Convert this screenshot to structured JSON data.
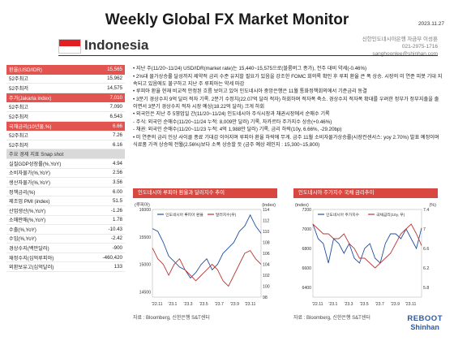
{
  "header": {
    "title": "Weekly Global FX Market Monitor",
    "date": "2023.11.27"
  },
  "country": {
    "name": "Indonesia",
    "flag_colors": [
      "#e01e24",
      "#ffffff"
    ]
  },
  "contact": {
    "line1": "신한인도네시아은행 자금부 이성훈",
    "line2": "021-2975-1716",
    "line3": "sanghoonlee@shinhan.com"
  },
  "table": [
    {
      "label": "환율(USD/IDR)",
      "value": "15,565",
      "style": "hdr"
    },
    {
      "label": "52주최고",
      "value": "15,962",
      "style": ""
    },
    {
      "label": "52주최저",
      "value": "14,575",
      "style": ""
    },
    {
      "label": "주가(Jakarta index)",
      "value": "7,010",
      "style": "hdr"
    },
    {
      "label": "52주최고",
      "value": "7,090",
      "style": ""
    },
    {
      "label": "52주최저",
      "value": "6,543",
      "style": ""
    },
    {
      "label": "국채금리(10년물,%)",
      "value": "6.66",
      "style": "hdr"
    },
    {
      "label": "52주최고",
      "value": "7.26",
      "style": ""
    },
    {
      "label": "52주최저",
      "value": "6.16",
      "style": ""
    },
    {
      "label": "주요 경제 지표 Snap shot",
      "value": "",
      "style": "snap"
    },
    {
      "label": "실질GDP성장률(%,YoY)",
      "value": "4.94",
      "style": ""
    },
    {
      "label": "소비자물가(%,YoY)",
      "value": "2.56",
      "style": ""
    },
    {
      "label": "생산자물가(%,YoY)",
      "value": "3.56",
      "style": ""
    },
    {
      "label": "정책금리(%)",
      "value": "6.00",
      "style": ""
    },
    {
      "label": "제조업 PMI (index)",
      "value": "51.5",
      "style": ""
    },
    {
      "label": "산업생산(%,YoY)",
      "value": "-1.26",
      "style": ""
    },
    {
      "label": "소매판매(%,YoY)",
      "value": "1.78",
      "style": ""
    },
    {
      "label": "수출(%,YoY)",
      "value": "-10.43",
      "style": ""
    },
    {
      "label": "수입(%,YoY)",
      "value": "-2.42",
      "style": ""
    },
    {
      "label": "경상수지(백만달러)",
      "value": "-900",
      "style": ""
    },
    {
      "label": "재정수지(십억루피아)",
      "value": "-460,420",
      "style": ""
    },
    {
      "label": "외환보유고(십억달러)",
      "value": "133",
      "style": ""
    }
  ],
  "bullets": [
    "• 지난 주(11/20~11/24) USD/IDR(market rate)는 15,440~15,575으로(블룸버그 종가), 전주 대비 약세(-0.46%)",
    "• 2%대 물가상승률 달성까지 제약적 금리 수준 유지할 필요가 있음을 강조한 FOMC 회의록 확인 후 루피 환율 큰 폭 상승. 시장의 미 연준 피봇 기대 지속되고 있음에도 불구하고 지난 주 루피아는 약세 마감",
    "• 루피아 환율 현재 비교적 안정된 흐름 보이고 있어 인도네시아 중앙은행은 11월 통화정책회의에서 기준금리 동결",
    "• 3분기 경상수지 9억 달러 적자 기록. 2분기 수정치(22.07억 달러 적자) 하회하며 적자폭 축소. 경상수지 적자폭 확대를 우려한 정부가 정부지출을 줄이면서 3분기 경상수지 적자 시장 예상(18.22억 달러) 크게 하회",
    "• 외국인은 지난 주 5영업일 간(11/20~11/24) 인도네시아 주식시장과 채권시장에서 순매수 기록",
    "  - 주식: 외국인 순매수(11/20~11/24 누적: 8,009만 달러) 기록, 자카르타 주가지수 상승(+0.46%)",
    "  - 채권: 외국인 순매수(11/20~11/23 누적: 4억 1,988만 달러) 기록, 금리 하락(10y, 6.66%, -29.20bp)",
    "• 미 연준의 금리 인상 사이클 종료 기대감 이어지며 루피아 환율 하락에 무게. 금주 11월 소비자물가상승률(시장컨센서스: yoy 2.70%) 발표 예정이며 식료품 가격 상승에 전월(2.56%)보다 소폭 상승할 듯 (금주 예상 레인지 : 15,300~15,800)"
  ],
  "chart_data": [
    {
      "type": "line",
      "title": "인도네시아 루피아 환율과 달러지수 추이",
      "x_ticks": [
        "'22.11",
        "'23.1",
        "'23.3",
        "'23.5",
        "'23.7",
        "'23.9",
        "'23.11"
      ],
      "left_axis": {
        "label": "(루피아)",
        "ticks": [
          14500,
          15000,
          15500,
          16000
        ],
        "range": [
          14400,
          16000
        ]
      },
      "right_axis": {
        "label": "(index)",
        "ticks": [
          98,
          100,
          102,
          104,
          106,
          108,
          110,
          112,
          114
        ],
        "range": [
          98,
          114
        ]
      },
      "series": [
        {
          "name": "인도네시아 루피아 환율",
          "axis": "left",
          "color": "#1f4fa0",
          "values": [
            15650,
            15600,
            15400,
            15150,
            15050,
            14950,
            14900,
            14750,
            14850,
            15000,
            15100,
            14900,
            15000,
            15200,
            15300,
            15400,
            15600,
            15700,
            15900,
            15700,
            15565
          ]
        },
        {
          "name": "달러지수(우)",
          "axis": "right",
          "color": "#b83a3a",
          "values": [
            107,
            105,
            104,
            102,
            104,
            105,
            103,
            102,
            101,
            102,
            103,
            104,
            103,
            101,
            100,
            102,
            104,
            106,
            106.5,
            105,
            104
          ]
        }
      ]
    },
    {
      "type": "line",
      "title": "인도네시아 주가지수 국채 금리추이",
      "x_ticks": [
        "'22.11",
        "'23.1",
        "'23.3",
        "'23.5",
        "'23.7",
        "'23.9",
        "'23.11"
      ],
      "left_axis": {
        "label": "(index)",
        "ticks": [
          6400,
          6600,
          6800,
          7000,
          7200
        ],
        "range": [
          6300,
          7200
        ]
      },
      "right_axis": {
        "label": "(%)",
        "ticks": [
          5.8,
          6.2,
          6.6,
          7.0,
          7.4
        ],
        "range": [
          5.6,
          7.4
        ]
      },
      "series": [
        {
          "name": "인도네시아 주가지수",
          "axis": "left",
          "color": "#1f4fa0",
          "values": [
            7050,
            6900,
            6850,
            6650,
            6900,
            6850,
            6750,
            6850,
            6700,
            6650,
            6800,
            6850,
            6700,
            6650,
            6850,
            6950,
            6950,
            6900,
            7000,
            6900,
            6800,
            7010
          ]
        },
        {
          "name": "국채금리(10y, 우)",
          "axis": "right",
          "color": "#b83a3a",
          "values": [
            7.1,
            7.0,
            6.9,
            6.9,
            6.8,
            6.8,
            6.9,
            6.7,
            6.6,
            6.4,
            6.4,
            6.3,
            6.2,
            6.3,
            6.4,
            6.5,
            6.7,
            6.9,
            7.0,
            7.1,
            6.9,
            6.66
          ]
        }
      ]
    }
  ],
  "sources": [
    "자료 : Bloomberg, 신한은행 S&T센터",
    "자료 : Bloomberg, 신한은행 S&T센터"
  ],
  "logo": {
    "line1": "REBOOT",
    "line2": "Shinhan"
  }
}
